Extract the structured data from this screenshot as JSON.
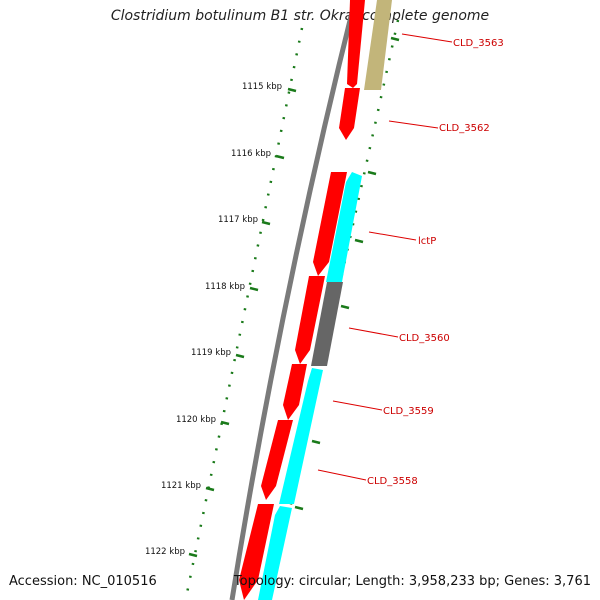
{
  "header": {
    "title": "Clostridium botulinum B1 str. Okra, complete genome"
  },
  "footer": {
    "accession": "Accession: NC_010516",
    "topology": "Topology: circular; Length: 3,958,233 bp; Genes: 3,761"
  },
  "colors": {
    "backbone": "#7a7a7a",
    "forward_cds": "#ff0000",
    "reverse_cds": "#00ffff",
    "gray_feature": "#666666",
    "olive_feature": "#c2b57a",
    "tick": "#1a7a1a",
    "label_red": "#cc0000"
  },
  "scale_labels": [
    "1115 kbp",
    "1116 kbp",
    "1117 kbp",
    "1118 kbp",
    "1119 kbp",
    "1120 kbp",
    "1121 kbp",
    "1122 kbp"
  ],
  "gene_labels": [
    "CLD_3563",
    "CLD_3562",
    "lctP",
    "CLD_3560",
    "CLD_3559",
    "CLD_3558"
  ]
}
